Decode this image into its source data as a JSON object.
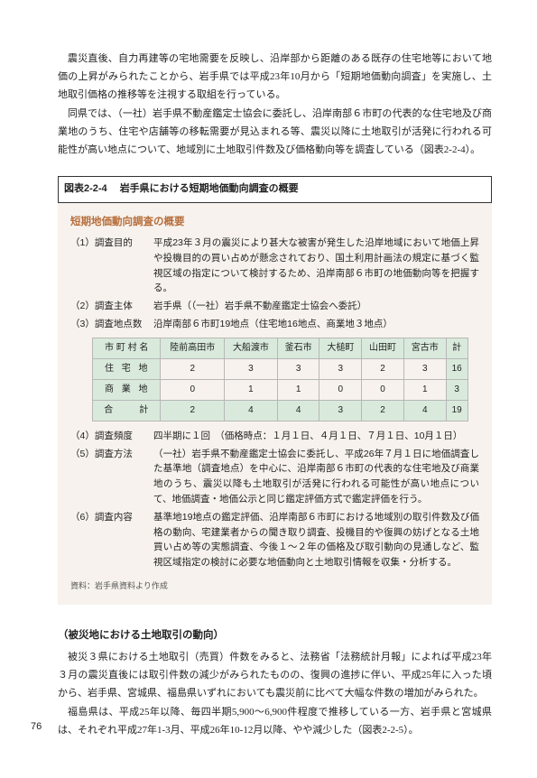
{
  "paragraphs": {
    "p1": "震災直後、自力再建等の宅地需要を反映し、沿岸部から距離のある既存の住宅地等において地価の上昇がみられたことから、岩手県では平成23年10月から「短期地価動向調査」を実施し、土地取引価格の推移等を注視する取組を行っている。",
    "p2": "同県では、（一社）岩手県不動産鑑定士協会に委託し、沿岸南部６市町の代表的な住宅地及び商業地のうち、住宅や店舗等の移転需要が見込まれる等、震災以降に土地取引が活発に行われる可能性が高い地点について、地域別に土地取引件数及び価格動向等を調査している（図表2-2-4）。"
  },
  "figure": {
    "num": "図表2-2-4",
    "title": "岩手県における短期地価動向調査の概要"
  },
  "summary": {
    "title": "短期地価動向調査の概要",
    "items": [
      {
        "label": "（1）調査目的",
        "value": "平成23年３月の震災により甚大な被害が発生した沿岸地域において地価上昇や投機目的の買い占めが懸念されており、国土利用計画法の規定に基づく監視区域の指定について検討するため、沿岸南部６市町の地価動向等を把握する。"
      },
      {
        "label": "（2）調査主体",
        "value": "岩手県（（一社）岩手県不動産鑑定士協会へ委託）"
      },
      {
        "label": "（3）調査地点数",
        "value": "沿岸南部６市町19地点（住宅地16地点、商業地３地点）"
      }
    ],
    "items2": [
      {
        "label": "（4）調査頻度",
        "value": "四半期に１回　（価格時点：１月１日、４月１日、７月１日、10月１日）"
      },
      {
        "label": "（5）調査方法",
        "value": "（一社）岩手県不動産鑑定士協会に委託し、平成26年７月１日に地価調査した基準地（調査地点）を中心に、沿岸南部６市町の代表的な住宅地及び商業地のうち、震災以降も土地取引が活発に行われる可能性が高い地点について、地価調査・地価公示と同じ鑑定評価方式で鑑定評価を行う。"
      },
      {
        "label": "（6）調査内容",
        "value": "基準地19地点の鑑定評価、沿岸南部６市町における地域別の取引件数及び価格の動向、宅建業者からの聞き取り調査、投機目的や復興の妨げとなる土地買い占め等の実態調査、今後１～２年の価格及び取引動向の見通しなど、監視区域指定の検討に必要な地価動向と土地取引情報を収集・分析する。"
      }
    ],
    "source": "資料：岩手県資料より作成"
  },
  "table": {
    "headers": [
      "市 町 村 名",
      "陸前高田市",
      "大船渡市",
      "釜石市",
      "大槌町",
      "山田町",
      "宮古市",
      "計"
    ],
    "rows": [
      {
        "head": "住 宅 地",
        "cells": [
          "2",
          "3",
          "3",
          "3",
          "2",
          "3",
          "16"
        ]
      },
      {
        "head": "商 業 地",
        "cells": [
          "0",
          "1",
          "1",
          "0",
          "0",
          "1",
          "3"
        ]
      },
      {
        "head": "合　　計",
        "cells": [
          "2",
          "4",
          "4",
          "3",
          "2",
          "4",
          "19"
        ]
      }
    ]
  },
  "subheading": "（被災地における土地取引の動向）",
  "paragraphs2": {
    "p3": "被災３県における土地取引（売買）件数をみると、法務省「法務統計月報」によれば平成23年３月の震災直後には取引件数の減少がみられたものの、復興の進捗に伴い、平成25年に入った頃から、岩手県、宮城県、福島県いずれにおいても震災前に比べて大幅な件数の増加がみられた。",
    "p4": "福島県は、平成25年以降、毎四半期5,900～6,900件程度で推移している一方、岩手県と宮城県は、それぞれ平成27年1-3月、平成26年10-12月以降、やや減少した（図表2-2-5）。"
  },
  "pagenum": "76"
}
